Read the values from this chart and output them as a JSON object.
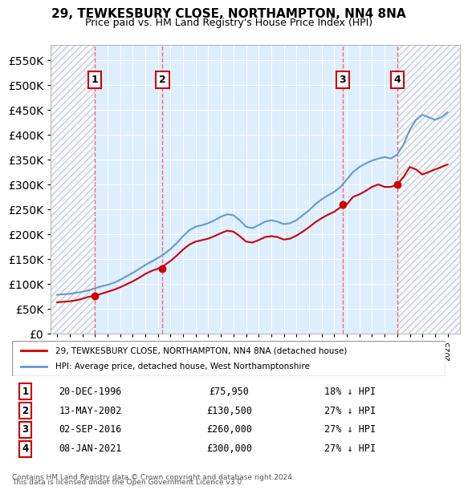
{
  "title": "29, TEWKESBURY CLOSE, NORTHAMPTON, NN4 8NA",
  "subtitle": "Price paid vs. HM Land Registry's House Price Index (HPI)",
  "hpi_label": "HPI: Average price, detached house, West Northamptonshire",
  "property_label": "29, TEWKESBURY CLOSE, NORTHAMPTON, NN4 8NA (detached house)",
  "footer1": "Contains HM Land Registry data © Crown copyright and database right 2024.",
  "footer2": "This data is licensed under the Open Government Licence v3.0.",
  "xlim": [
    1993.5,
    2026.0
  ],
  "ylim": [
    0,
    580000
  ],
  "hpi_color": "#6699cc",
  "property_color": "#cc0000",
  "hatch_color": "#cccccc",
  "background_color": "#ddeeff",
  "transactions": [
    {
      "num": 1,
      "date": "20-DEC-1996",
      "year": 1996.97,
      "price": 75950,
      "pct": "18% ↓ HPI"
    },
    {
      "num": 2,
      "date": "13-MAY-2002",
      "year": 2002.37,
      "price": 130500,
      "pct": "27% ↓ HPI"
    },
    {
      "num": 3,
      "date": "02-SEP-2016",
      "year": 2016.67,
      "price": 260000,
      "pct": "27% ↓ HPI"
    },
    {
      "num": 4,
      "date": "08-JAN-2021",
      "year": 2021.03,
      "price": 300000,
      "pct": "27% ↓ HPI"
    }
  ],
  "hpi_years": [
    1994,
    1994.5,
    1995,
    1995.5,
    1996,
    1996.5,
    1997,
    1997.5,
    1998,
    1998.5,
    1999,
    1999.5,
    2000,
    2000.5,
    2001,
    2001.5,
    2002,
    2002.5,
    2003,
    2003.5,
    2004,
    2004.5,
    2005,
    2005.5,
    2006,
    2006.5,
    2007,
    2007.5,
    2008,
    2008.5,
    2009,
    2009.5,
    2010,
    2010.5,
    2011,
    2011.5,
    2012,
    2012.5,
    2013,
    2013.5,
    2014,
    2014.5,
    2015,
    2015.5,
    2016,
    2016.5,
    2017,
    2017.5,
    2018,
    2018.5,
    2019,
    2019.5,
    2020,
    2020.5,
    2021,
    2021.5,
    2022,
    2022.5,
    2023,
    2023.5,
    2024,
    2024.5,
    2025
  ],
  "hpi_values": [
    78000,
    79000,
    80000,
    82000,
    84000,
    87000,
    91000,
    95000,
    98000,
    102000,
    108000,
    115000,
    122000,
    130000,
    138000,
    145000,
    152000,
    160000,
    170000,
    182000,
    196000,
    208000,
    215000,
    218000,
    222000,
    228000,
    235000,
    240000,
    238000,
    228000,
    215000,
    212000,
    218000,
    225000,
    228000,
    225000,
    220000,
    222000,
    228000,
    238000,
    248000,
    260000,
    270000,
    278000,
    285000,
    295000,
    310000,
    325000,
    335000,
    342000,
    348000,
    352000,
    355000,
    352000,
    360000,
    380000,
    410000,
    430000,
    440000,
    435000,
    430000,
    435000,
    445000
  ],
  "property_years": [
    1994,
    1994.5,
    1995,
    1995.5,
    1996,
    1996.5,
    1997,
    1997.5,
    1998,
    1998.5,
    1999,
    1999.5,
    2000,
    2000.5,
    2001,
    2001.5,
    2002,
    2002.5,
    2003,
    2003.5,
    2004,
    2004.5,
    2005,
    2005.5,
    2006,
    2006.5,
    2007,
    2007.5,
    2008,
    2008.5,
    2009,
    2009.5,
    2010,
    2010.5,
    2011,
    2011.5,
    2012,
    2012.5,
    2013,
    2013.5,
    2014,
    2014.5,
    2015,
    2015.5,
    2016,
    2016.5,
    2017,
    2017.5,
    2018,
    2018.5,
    2019,
    2019.5,
    2020,
    2020.5,
    2021,
    2021.5,
    2022,
    2022.5,
    2023,
    2023.5,
    2024,
    2024.5,
    2025
  ],
  "property_values": [
    63000,
    64000,
    65000,
    67000,
    70000,
    74000,
    75950,
    80000,
    84000,
    88000,
    93000,
    99000,
    105000,
    112000,
    120000,
    126000,
    130500,
    137000,
    146000,
    157000,
    169000,
    179000,
    185000,
    188000,
    191000,
    196000,
    202000,
    207000,
    205000,
    196000,
    185000,
    183000,
    188000,
    194000,
    196000,
    194000,
    189000,
    191000,
    197000,
    205000,
    214000,
    224000,
    232000,
    239000,
    245000,
    254000,
    260000,
    275000,
    280000,
    287000,
    295000,
    300000,
    295000,
    295000,
    300000,
    315000,
    335000,
    330000,
    320000,
    325000,
    330000,
    335000,
    340000
  ]
}
